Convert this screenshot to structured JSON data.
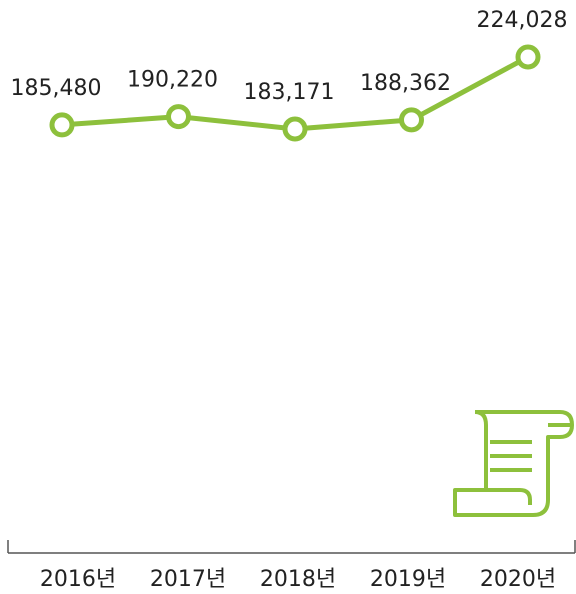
{
  "chart_data": {
    "type": "line",
    "categories": [
      "2016년",
      "2017년",
      "2018년",
      "2019년",
      "2020년"
    ],
    "series": [
      {
        "color": "#8dc03c",
        "values": [
          185480,
          190220,
          183171,
          188362,
          224028
        ],
        "value_labels": [
          "185,480",
          "190,220",
          "183,171",
          "188,362",
          "224,028"
        ]
      }
    ]
  }
}
